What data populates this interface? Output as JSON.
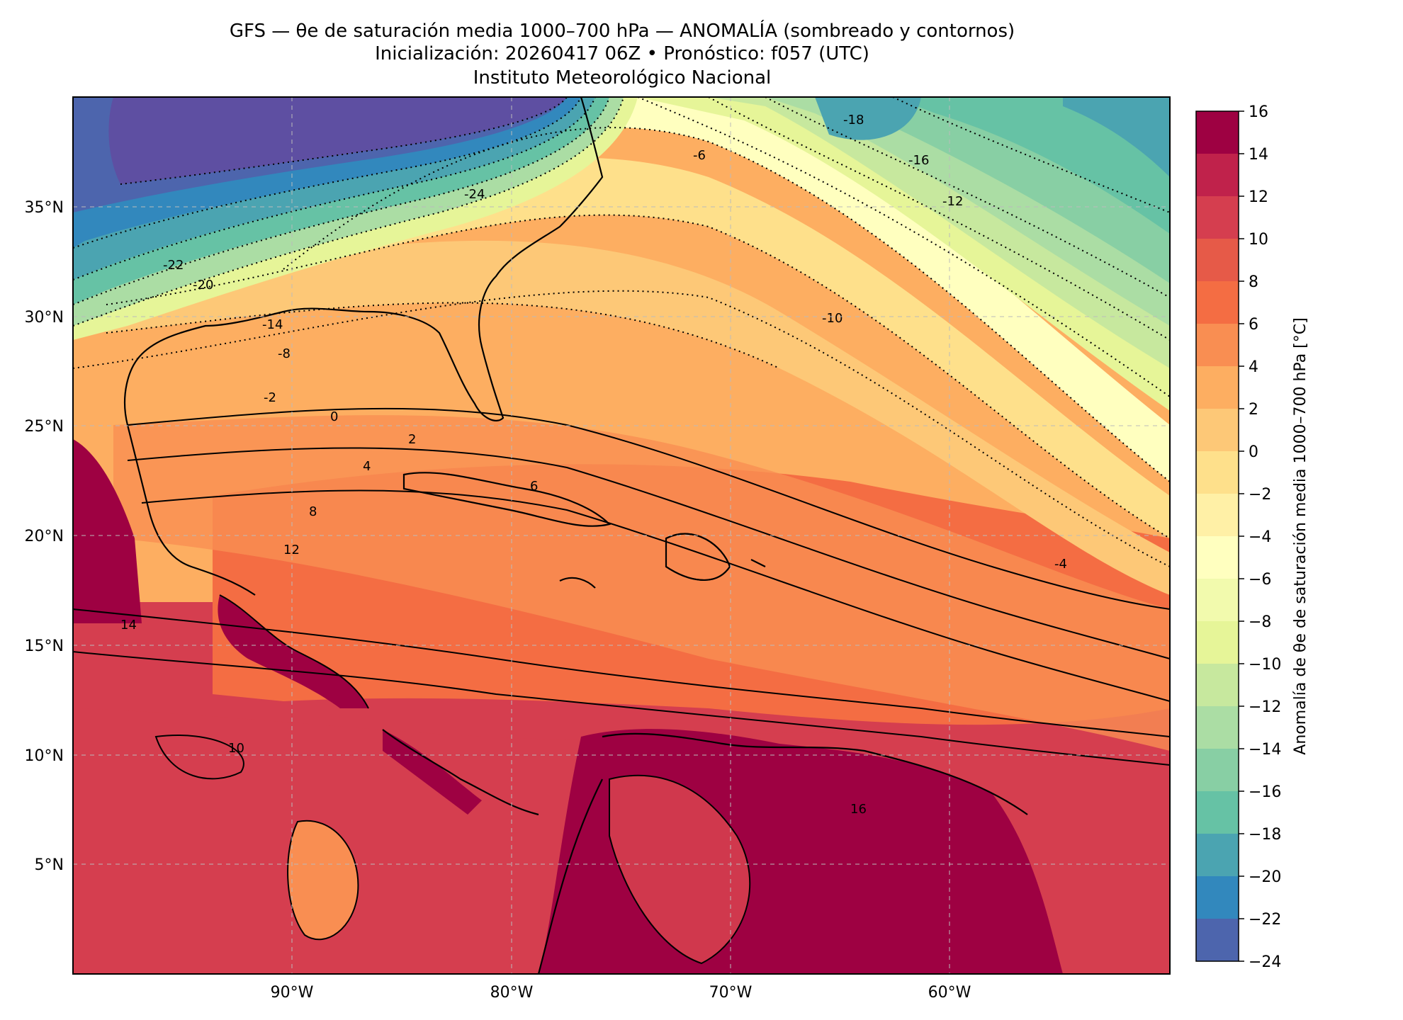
{
  "title": {
    "line1": "GFS — θe de saturación media 1000–700 hPa — ANOMALÍA (sombreado y contornos)",
    "line2": "Inicialización: 20260417 06Z   •   Pronóstico: f057 (UTC)",
    "line3": "Instituto Meteorológico Nacional"
  },
  "map": {
    "lon_range": [
      -100,
      -50
    ],
    "lat_range": [
      0,
      40
    ],
    "x_ticks": [
      "90°W",
      "80°W",
      "70°W",
      "60°W"
    ],
    "y_ticks": [
      "35°N",
      "30°N",
      "25°N",
      "20°N",
      "15°N",
      "10°N",
      "5°N"
    ],
    "contour_labels": [
      "-24",
      "-22",
      "-20",
      "-18",
      "-16",
      "-14",
      "-12",
      "-10",
      "-8",
      "-6",
      "-4",
      "-2",
      "0",
      "2",
      "4",
      "6",
      "8",
      "10",
      "12",
      "14",
      "16"
    ]
  },
  "colorbar": {
    "label": "Anomalía de θe de saturación media 1000–700 hPa [°C]",
    "ticks": [
      "16",
      "14",
      "12",
      "10",
      "8",
      "6",
      "4",
      "2",
      "0",
      "−2",
      "−4",
      "−6",
      "−8",
      "−10",
      "−12",
      "−14",
      "−16",
      "−18",
      "−20",
      "−22",
      "−24"
    ],
    "colors": [
      "#9e0142",
      "#c0224b",
      "#d53e4f",
      "#e65a48",
      "#f46d43",
      "#f98e52",
      "#fdae61",
      "#fdc877",
      "#fee08b",
      "#fff0a6",
      "#ffffbf",
      "#f2faad",
      "#e6f598",
      "#c7e89e",
      "#abdda4",
      "#88cfa4",
      "#66c2a5",
      "#4ba4b1",
      "#3288bd",
      "#4d65ad",
      "#5e4fa2"
    ]
  }
}
